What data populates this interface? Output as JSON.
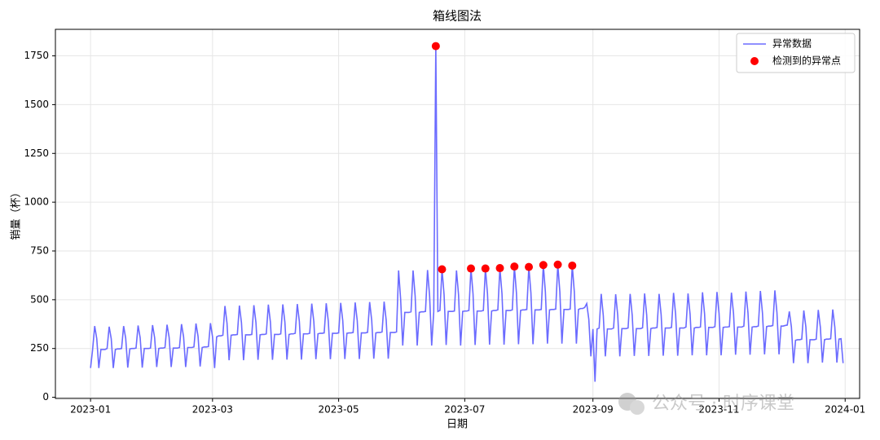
{
  "chart_data": {
    "type": "line",
    "title": "箱线图法",
    "xlabel": "日期",
    "ylabel": "销量（杯）",
    "watermark": "公众号 · 时序课堂",
    "xlim": [
      -17,
      372
    ],
    "ylim": [
      -6,
      1886
    ],
    "xticks": [
      {
        "value": 0,
        "label": "2023-01"
      },
      {
        "value": 59,
        "label": "2023-03"
      },
      {
        "value": 120,
        "label": "2023-05"
      },
      {
        "value": 181,
        "label": "2023-07"
      },
      {
        "value": 243,
        "label": "2023-09"
      },
      {
        "value": 304,
        "label": "2023-11"
      },
      {
        "value": 365,
        "label": "2024-01"
      }
    ],
    "yticks": [
      0,
      250,
      500,
      750,
      1000,
      1250,
      1500,
      1750
    ],
    "grid": true,
    "legend": "upper right",
    "series": [
      {
        "name": "异常数据",
        "type": "line",
        "color": "#6b6bff",
        "x": [
          0,
          1,
          2,
          3,
          4,
          5,
          6,
          7,
          8,
          9,
          10,
          11,
          12,
          13,
          14,
          15,
          16,
          17,
          18,
          19,
          20,
          21,
          22,
          23,
          24,
          25,
          26,
          27,
          28,
          29,
          30,
          31,
          32,
          33,
          34,
          35,
          36,
          37,
          38,
          39,
          40,
          41,
          42,
          43,
          44,
          45,
          46,
          47,
          48,
          49,
          50,
          51,
          52,
          53,
          54,
          55,
          56,
          57,
          58,
          59,
          60,
          61,
          62,
          63,
          64,
          65,
          66,
          67,
          68,
          69,
          70,
          71,
          72,
          73,
          74,
          75,
          76,
          77,
          78,
          79,
          80,
          81,
          82,
          83,
          84,
          85,
          86,
          87,
          88,
          89,
          90,
          91,
          92,
          93,
          94,
          95,
          96,
          97,
          98,
          99,
          100,
          101,
          102,
          103,
          104,
          105,
          106,
          107,
          108,
          109,
          110,
          111,
          112,
          113,
          114,
          115,
          116,
          117,
          118,
          119,
          120,
          121,
          122,
          123,
          124,
          125,
          126,
          127,
          128,
          129,
          130,
          131,
          132,
          133,
          134,
          135,
          136,
          137,
          138,
          139,
          140,
          141,
          142,
          143,
          144,
          145,
          146,
          147,
          148,
          149,
          150,
          151,
          152,
          153,
          154,
          155,
          156,
          157,
          158,
          159,
          160,
          161,
          162,
          163,
          164,
          165,
          166,
          167,
          168,
          169,
          170,
          171,
          172,
          173,
          174,
          175,
          176,
          177,
          178,
          179,
          180,
          181,
          182,
          183,
          184,
          185,
          186,
          187,
          188,
          189,
          190,
          191,
          192,
          193,
          194,
          195,
          196,
          197,
          198,
          199,
          200,
          201,
          202,
          203,
          204,
          205,
          206,
          207,
          208,
          209,
          210,
          211,
          212,
          213,
          214,
          215,
          216,
          217,
          218,
          219,
          220,
          221,
          222,
          223,
          224,
          225,
          226,
          227,
          228,
          229,
          230,
          231,
          232,
          233,
          234,
          235,
          236,
          237,
          238,
          239,
          240,
          241,
          242,
          243,
          244,
          245,
          246,
          247,
          248,
          249,
          250,
          251,
          252,
          253,
          254,
          255,
          256,
          257,
          258,
          259,
          260,
          261,
          262,
          263,
          264,
          265,
          266,
          267,
          268,
          269,
          270,
          271,
          272,
          273,
          274,
          275,
          276,
          277,
          278,
          279,
          280,
          281,
          282,
          283,
          284,
          285,
          286,
          287,
          288,
          289,
          290,
          291,
          292,
          293,
          294,
          295,
          296,
          297,
          298,
          299,
          300,
          301,
          302,
          303,
          304,
          305,
          306,
          307,
          308,
          309,
          310,
          311,
          312,
          313,
          314,
          315,
          316,
          317,
          318,
          319,
          320,
          321,
          322,
          323,
          324,
          325,
          326,
          327,
          328,
          329,
          330,
          331,
          332,
          333,
          334,
          335,
          336,
          337,
          338,
          339,
          340,
          341,
          342,
          343,
          344,
          345,
          346,
          347,
          348,
          349,
          350,
          351,
          352,
          353,
          354,
          355,
          356,
          357,
          358,
          359,
          360,
          361,
          362,
          363,
          364
        ],
        "values": [
          150,
          245,
          365,
          300,
          150,
          245,
          245,
          245,
          250,
          362,
          300,
          150,
          245,
          248,
          248,
          250,
          365,
          302,
          152,
          248,
          250,
          250,
          252,
          368,
          305,
          152,
          250,
          250,
          250,
          252,
          370,
          305,
          155,
          250,
          252,
          252,
          255,
          372,
          308,
          155,
          252,
          252,
          252,
          255,
          375,
          310,
          155,
          255,
          255,
          255,
          258,
          378,
          312,
          158,
          255,
          258,
          258,
          260,
          380,
          310,
          150,
          310,
          315,
          315,
          318,
          468,
          380,
          190,
          318,
          320,
          320,
          322,
          470,
          382,
          190,
          320,
          320,
          320,
          322,
          472,
          383,
          192,
          320,
          322,
          322,
          325,
          475,
          385,
          192,
          322,
          322,
          322,
          325,
          476,
          385,
          193,
          322,
          325,
          325,
          328,
          478,
          388,
          193,
          325,
          325,
          325,
          328,
          480,
          388,
          195,
          325,
          328,
          328,
          330,
          482,
          390,
          195,
          328,
          328,
          328,
          330,
          484,
          392,
          196,
          328,
          330,
          330,
          332,
          486,
          392,
          196,
          330,
          330,
          330,
          333,
          488,
          394,
          198,
          330,
          332,
          332,
          335,
          490,
          395,
          198,
          332,
          332,
          332,
          335,
          650,
          500,
          265,
          435,
          435,
          435,
          438,
          650,
          520,
          265,
          435,
          438,
          438,
          440,
          652,
          520,
          265,
          438,
          1800,
          440,
          445,
          656,
          525,
          268,
          440,
          440,
          440,
          442,
          650,
          525,
          265,
          440,
          442,
          442,
          445,
          660,
          530,
          268,
          442,
          442,
          442,
          445,
          660,
          530,
          270,
          442,
          445,
          445,
          448,
          662,
          532,
          270,
          445,
          445,
          445,
          448,
          670,
          535,
          272,
          445,
          448,
          448,
          450,
          668,
          535,
          272,
          448,
          448,
          448,
          450,
          678,
          540,
          275,
          448,
          450,
          450,
          452,
          680,
          540,
          275,
          450,
          450,
          450,
          452,
          675,
          540,
          275,
          450,
          455,
          455,
          460,
          480,
          400,
          210,
          350,
          80,
          350,
          355,
          530,
          420,
          210,
          350,
          350,
          350,
          355,
          528,
          420,
          210,
          352,
          352,
          352,
          355,
          530,
          420,
          212,
          352,
          352,
          352,
          356,
          532,
          422,
          212,
          352,
          355,
          355,
          358,
          530,
          422,
          213,
          355,
          355,
          355,
          358,
          535,
          425,
          213,
          355,
          355,
          355,
          360,
          532,
          425,
          215,
          355,
          358,
          358,
          360,
          538,
          428,
          215,
          358,
          358,
          358,
          362,
          540,
          430,
          215,
          358,
          360,
          360,
          362,
          536,
          430,
          218,
          360,
          360,
          360,
          365,
          542,
          432,
          218,
          360,
          362,
          362,
          365,
          545,
          432,
          220,
          362,
          365,
          365,
          368,
          548,
          435,
          220,
          365,
          365,
          368,
          370,
          440,
          360,
          175,
          292,
          295,
          295,
          298,
          445,
          360,
          175,
          295,
          295,
          295,
          298,
          448,
          360,
          178,
          295,
          298,
          298,
          300,
          450,
          360,
          178,
          298,
          300,
          175
        ]
      },
      {
        "name": "检测到的异常点",
        "type": "scatter",
        "color": "#ff0000",
        "x": [
          167,
          170,
          184,
          191,
          198,
          205,
          212,
          219,
          226,
          233
        ],
        "values": [
          1800,
          656,
          660,
          660,
          662,
          670,
          668,
          678,
          680,
          675
        ]
      }
    ]
  }
}
